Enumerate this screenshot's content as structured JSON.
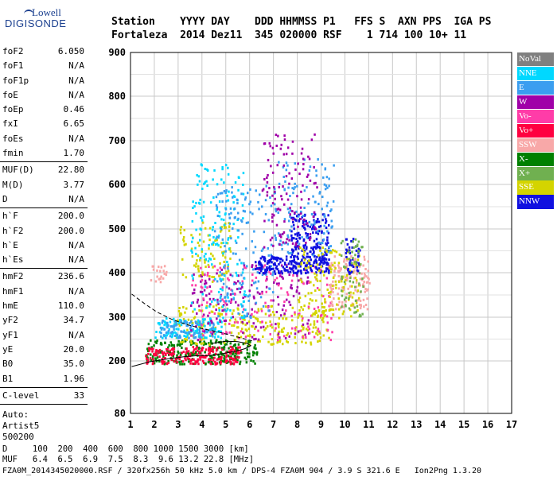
{
  "header": {
    "labels": "Station    YYYY DAY    DDD HHMMSS P1   FFS S  AXN PPS  IGA PS",
    "values": "Fortaleza  2014 Dez11  345 020000 RSF    1 714 100 10+ 11"
  },
  "logo": {
    "top": "Lowell",
    "bottom": "DIGISONDE"
  },
  "params": {
    "group1": [
      {
        "key": "foF2",
        "value": "6.050"
      },
      {
        "key": "foF1",
        "value": "N/A"
      },
      {
        "key": "foF1p",
        "value": "N/A"
      },
      {
        "key": "foE",
        "value": "N/A"
      },
      {
        "key": "foEp",
        "value": "0.46"
      },
      {
        "key": "fxI",
        "value": "6.65"
      },
      {
        "key": "foEs",
        "value": "N/A"
      },
      {
        "key": "fmin",
        "value": "1.70"
      }
    ],
    "group2": [
      {
        "key": "MUF(D)",
        "value": "22.80"
      },
      {
        "key": "M(D)",
        "value": "3.77"
      },
      {
        "key": "D",
        "value": "N/A"
      }
    ],
    "group3": [
      {
        "key": "h`F",
        "value": "200.0"
      },
      {
        "key": "h`F2",
        "value": "200.0"
      },
      {
        "key": "h`E",
        "value": "N/A"
      },
      {
        "key": "h`Es",
        "value": "N/A"
      }
    ],
    "group4": [
      {
        "key": "hmF2",
        "value": "236.6"
      },
      {
        "key": "hmF1",
        "value": "N/A"
      },
      {
        "key": "hmE",
        "value": "110.0"
      },
      {
        "key": "yF2",
        "value": "34.7"
      },
      {
        "key": "yF1",
        "value": "N/A"
      },
      {
        "key": "yE",
        "value": "20.0"
      },
      {
        "key": "B0",
        "value": "35.0"
      },
      {
        "key": "B1",
        "value": "1.96"
      }
    ],
    "group5": [
      {
        "key": "C-level",
        "value": "33"
      }
    ],
    "auto": [
      "Auto:",
      "Artist5",
      "500200"
    ]
  },
  "legend": [
    {
      "label": "NoVal",
      "color": "#808080"
    },
    {
      "label": "NNE",
      "color": "#00d8ff"
    },
    {
      "label": "E",
      "color": "#3a9ef0"
    },
    {
      "label": "W",
      "color": "#a000a8"
    },
    {
      "label": "Vo-",
      "color": "#ff3ca8"
    },
    {
      "label": "Vo+",
      "color": "#ff0040"
    },
    {
      "label": "SSW",
      "color": "#f8a8a8"
    },
    {
      "label": "X-",
      "color": "#008000"
    },
    {
      "label": "X+",
      "color": "#70b050"
    },
    {
      "label": "SSE",
      "color": "#d4d400"
    },
    {
      "label": "NNW",
      "color": "#1010e0"
    }
  ],
  "bottom": {
    "d_row": "D     100  200  400  600  800 1000 1500 3000 [km]",
    "muf_row": "MUF   6.4  6.5  6.9  7.5  8.3  9.6 13.2 22.8 [MHz]",
    "footer": "FZA0M_2014345020000.RSF / 320fx256h 50 kHz 5.0 km / DPS-4 FZA0M 904 / 3.9 S 321.6 E   Ion2Png 1.3.20"
  },
  "chart_data": {
    "type": "scatter",
    "xlim": [
      1,
      17
    ],
    "ylim": [
      80,
      900
    ],
    "x_ticks": [
      1,
      2,
      3,
      4,
      5,
      6,
      7,
      8,
      9,
      10,
      11,
      12,
      13,
      14,
      15,
      16,
      17
    ],
    "y_ticks": [
      80,
      200,
      300,
      400,
      500,
      600,
      700,
      800,
      900
    ],
    "grid": true,
    "legend_position": "right",
    "clusters": [
      {
        "name": "X-",
        "x": [
          1.6,
          6.3
        ],
        "y": [
          195,
          250
        ],
        "count": 260
      },
      {
        "name": "Vo+",
        "x": [
          1.6,
          5.6
        ],
        "y": [
          195,
          235
        ],
        "count": 200
      },
      {
        "name": "SSE",
        "x": [
          2.8,
          9.3
        ],
        "y": [
          240,
          330
        ],
        "count": 240
      },
      {
        "name": "NNE",
        "x": [
          2.0,
          4.8
        ],
        "y": [
          255,
          300
        ],
        "count": 120
      },
      {
        "name": "E",
        "x": [
          2.2,
          4.5
        ],
        "y": [
          255,
          295
        ],
        "count": 90
      },
      {
        "name": "W",
        "x": [
          3.5,
          8.5
        ],
        "y": [
          250,
          420
        ],
        "count": 160
      },
      {
        "name": "Vo-",
        "x": [
          3.5,
          9.5
        ],
        "y": [
          250,
          420
        ],
        "count": 150
      },
      {
        "name": "SSE",
        "x": [
          3.0,
          5.2
        ],
        "y": [
          380,
          520
        ],
        "count": 90
      },
      {
        "name": "NNE",
        "x": [
          3.5,
          5.8
        ],
        "y": [
          300,
          650
        ],
        "count": 160
      },
      {
        "name": "E",
        "x": [
          4.5,
          7.0
        ],
        "y": [
          300,
          600
        ],
        "count": 150
      },
      {
        "name": "NNW",
        "x": [
          6.2,
          9.3
        ],
        "y": [
          400,
          440
        ],
        "count": 220
      },
      {
        "name": "NNW",
        "x": [
          7.7,
          9.3
        ],
        "y": [
          440,
          540
        ],
        "count": 150
      },
      {
        "name": "E",
        "x": [
          7.0,
          9.5
        ],
        "y": [
          440,
          660
        ],
        "count": 120
      },
      {
        "name": "W",
        "x": [
          6.5,
          8.8
        ],
        "y": [
          460,
          720
        ],
        "count": 120
      },
      {
        "name": "SSW",
        "x": [
          9.3,
          11.0
        ],
        "y": [
          320,
          440
        ],
        "count": 140
      },
      {
        "name": "SSE",
        "x": [
          8.0,
          10.6
        ],
        "y": [
          300,
          460
        ],
        "count": 140
      },
      {
        "name": "NNW",
        "x": [
          10.0,
          10.6
        ],
        "y": [
          400,
          480
        ],
        "count": 40
      },
      {
        "name": "X+",
        "x": [
          9.8,
          10.8
        ],
        "y": [
          300,
          480
        ],
        "count": 60
      },
      {
        "name": "SSW",
        "x": [
          1.8,
          2.5
        ],
        "y": [
          380,
          420
        ],
        "count": 20
      }
    ],
    "trace_solid": [
      [
        1.05,
        187
      ],
      [
        1.8,
        198
      ],
      [
        2.6,
        205
      ],
      [
        3.3,
        210
      ],
      [
        3.8,
        212
      ],
      [
        4.2,
        212
      ],
      [
        4.6,
        214
      ],
      [
        5.0,
        218
      ],
      [
        5.4,
        222
      ],
      [
        5.8,
        228
      ],
      [
        6.05,
        235
      ],
      [
        5.9,
        240
      ],
      [
        5.5,
        244
      ],
      [
        5.0,
        245
      ],
      [
        4.4,
        240
      ]
    ],
    "trace_dashed": [
      [
        1.05,
        352
      ],
      [
        1.6,
        330
      ],
      [
        2.1,
        312
      ],
      [
        2.7,
        296
      ],
      [
        3.3,
        284
      ],
      [
        4.0,
        274
      ],
      [
        4.7,
        266
      ],
      [
        5.4,
        256
      ],
      [
        6.1,
        246
      ]
    ]
  }
}
